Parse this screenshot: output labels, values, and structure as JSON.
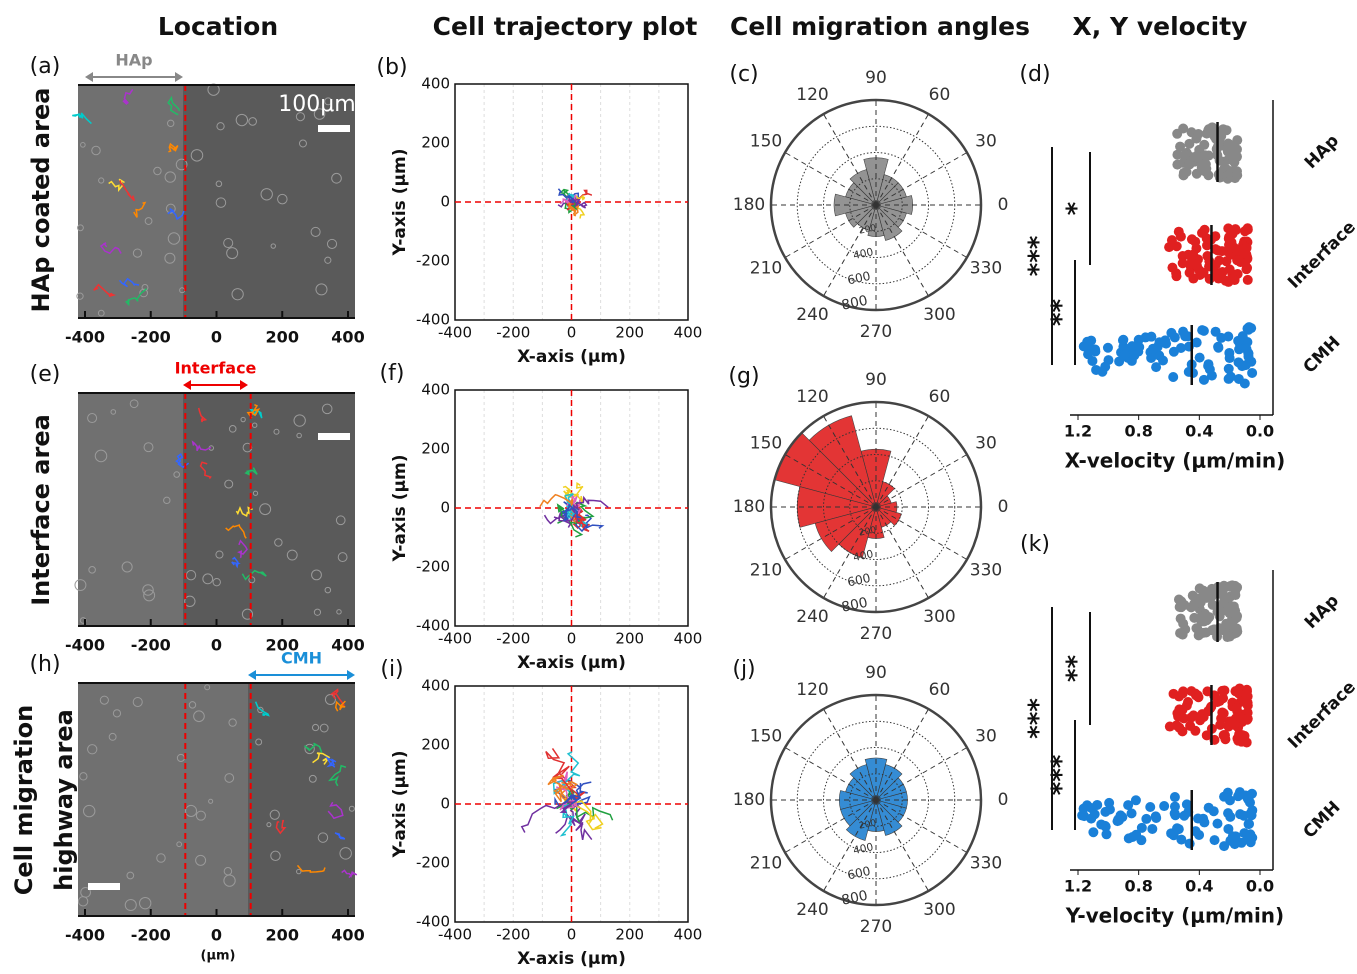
{
  "column_headers": [
    "Location",
    "Cell trajectory plot",
    "Cell migration angles",
    "X, Y velocity"
  ],
  "row_labels": [
    [
      "HAp coated area"
    ],
    [
      "Interface area"
    ],
    [
      "Cell migration",
      "highway area"
    ]
  ],
  "location_panels": [
    {
      "label": "(a)",
      "region": "HAp",
      "scale_bar": "100μm"
    },
    {
      "label": "(e)",
      "region": "Interface"
    },
    {
      "label": "(h)",
      "region": "CMH",
      "unit": "(μm)"
    }
  ],
  "location_ticks": [
    "-400",
    "-200",
    "0",
    "200",
    "400"
  ],
  "trajectory_panels": [
    {
      "label": "(b)"
    },
    {
      "label": "(f)"
    },
    {
      "label": "(i)"
    }
  ],
  "trajectory_axes": {
    "x_ticks": [
      "-400",
      "-200",
      "0",
      "200",
      "400"
    ],
    "y_ticks": [
      "400",
      "200",
      "0",
      "-200",
      "-400"
    ],
    "x_label": "X-axis (μm)",
    "y_label": "Y-axis (μm)"
  },
  "angle_panels": [
    {
      "label": "(c)"
    },
    {
      "label": "(g)"
    },
    {
      "label": "(j)"
    }
  ],
  "angle_ticks": [
    "0",
    "30",
    "60",
    "90",
    "120",
    "150",
    "180",
    "210",
    "240",
    "270",
    "300",
    "330"
  ],
  "radial_ticks": [
    "200",
    "400",
    "600",
    "800"
  ],
  "velocity_panels": [
    {
      "label": "(d)",
      "x_label": "X-velocity (μm/min)",
      "significance": [
        "*",
        "**",
        "***"
      ]
    },
    {
      "label": "(k)",
      "x_label": "Y-velocity (μm/min)",
      "significance": [
        "**",
        "***",
        "***"
      ]
    }
  ],
  "velocity_ticks": [
    "1.2",
    "0.8",
    "0.4",
    "0.0"
  ],
  "groups": [
    "HAp",
    "Interface",
    "CMH"
  ]
}
